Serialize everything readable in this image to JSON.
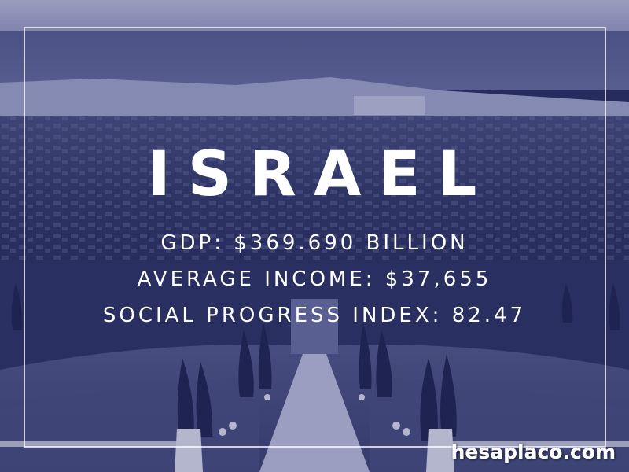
{
  "poster": {
    "title": "ISRAEL",
    "lines": [
      "GDP: $369.690 BILLION",
      "AVERAGE INCOME: $37,655",
      "SOCIAL PROGRESS INDEX: 82.47"
    ],
    "watermark": "hesaplaco.com"
  }
}
